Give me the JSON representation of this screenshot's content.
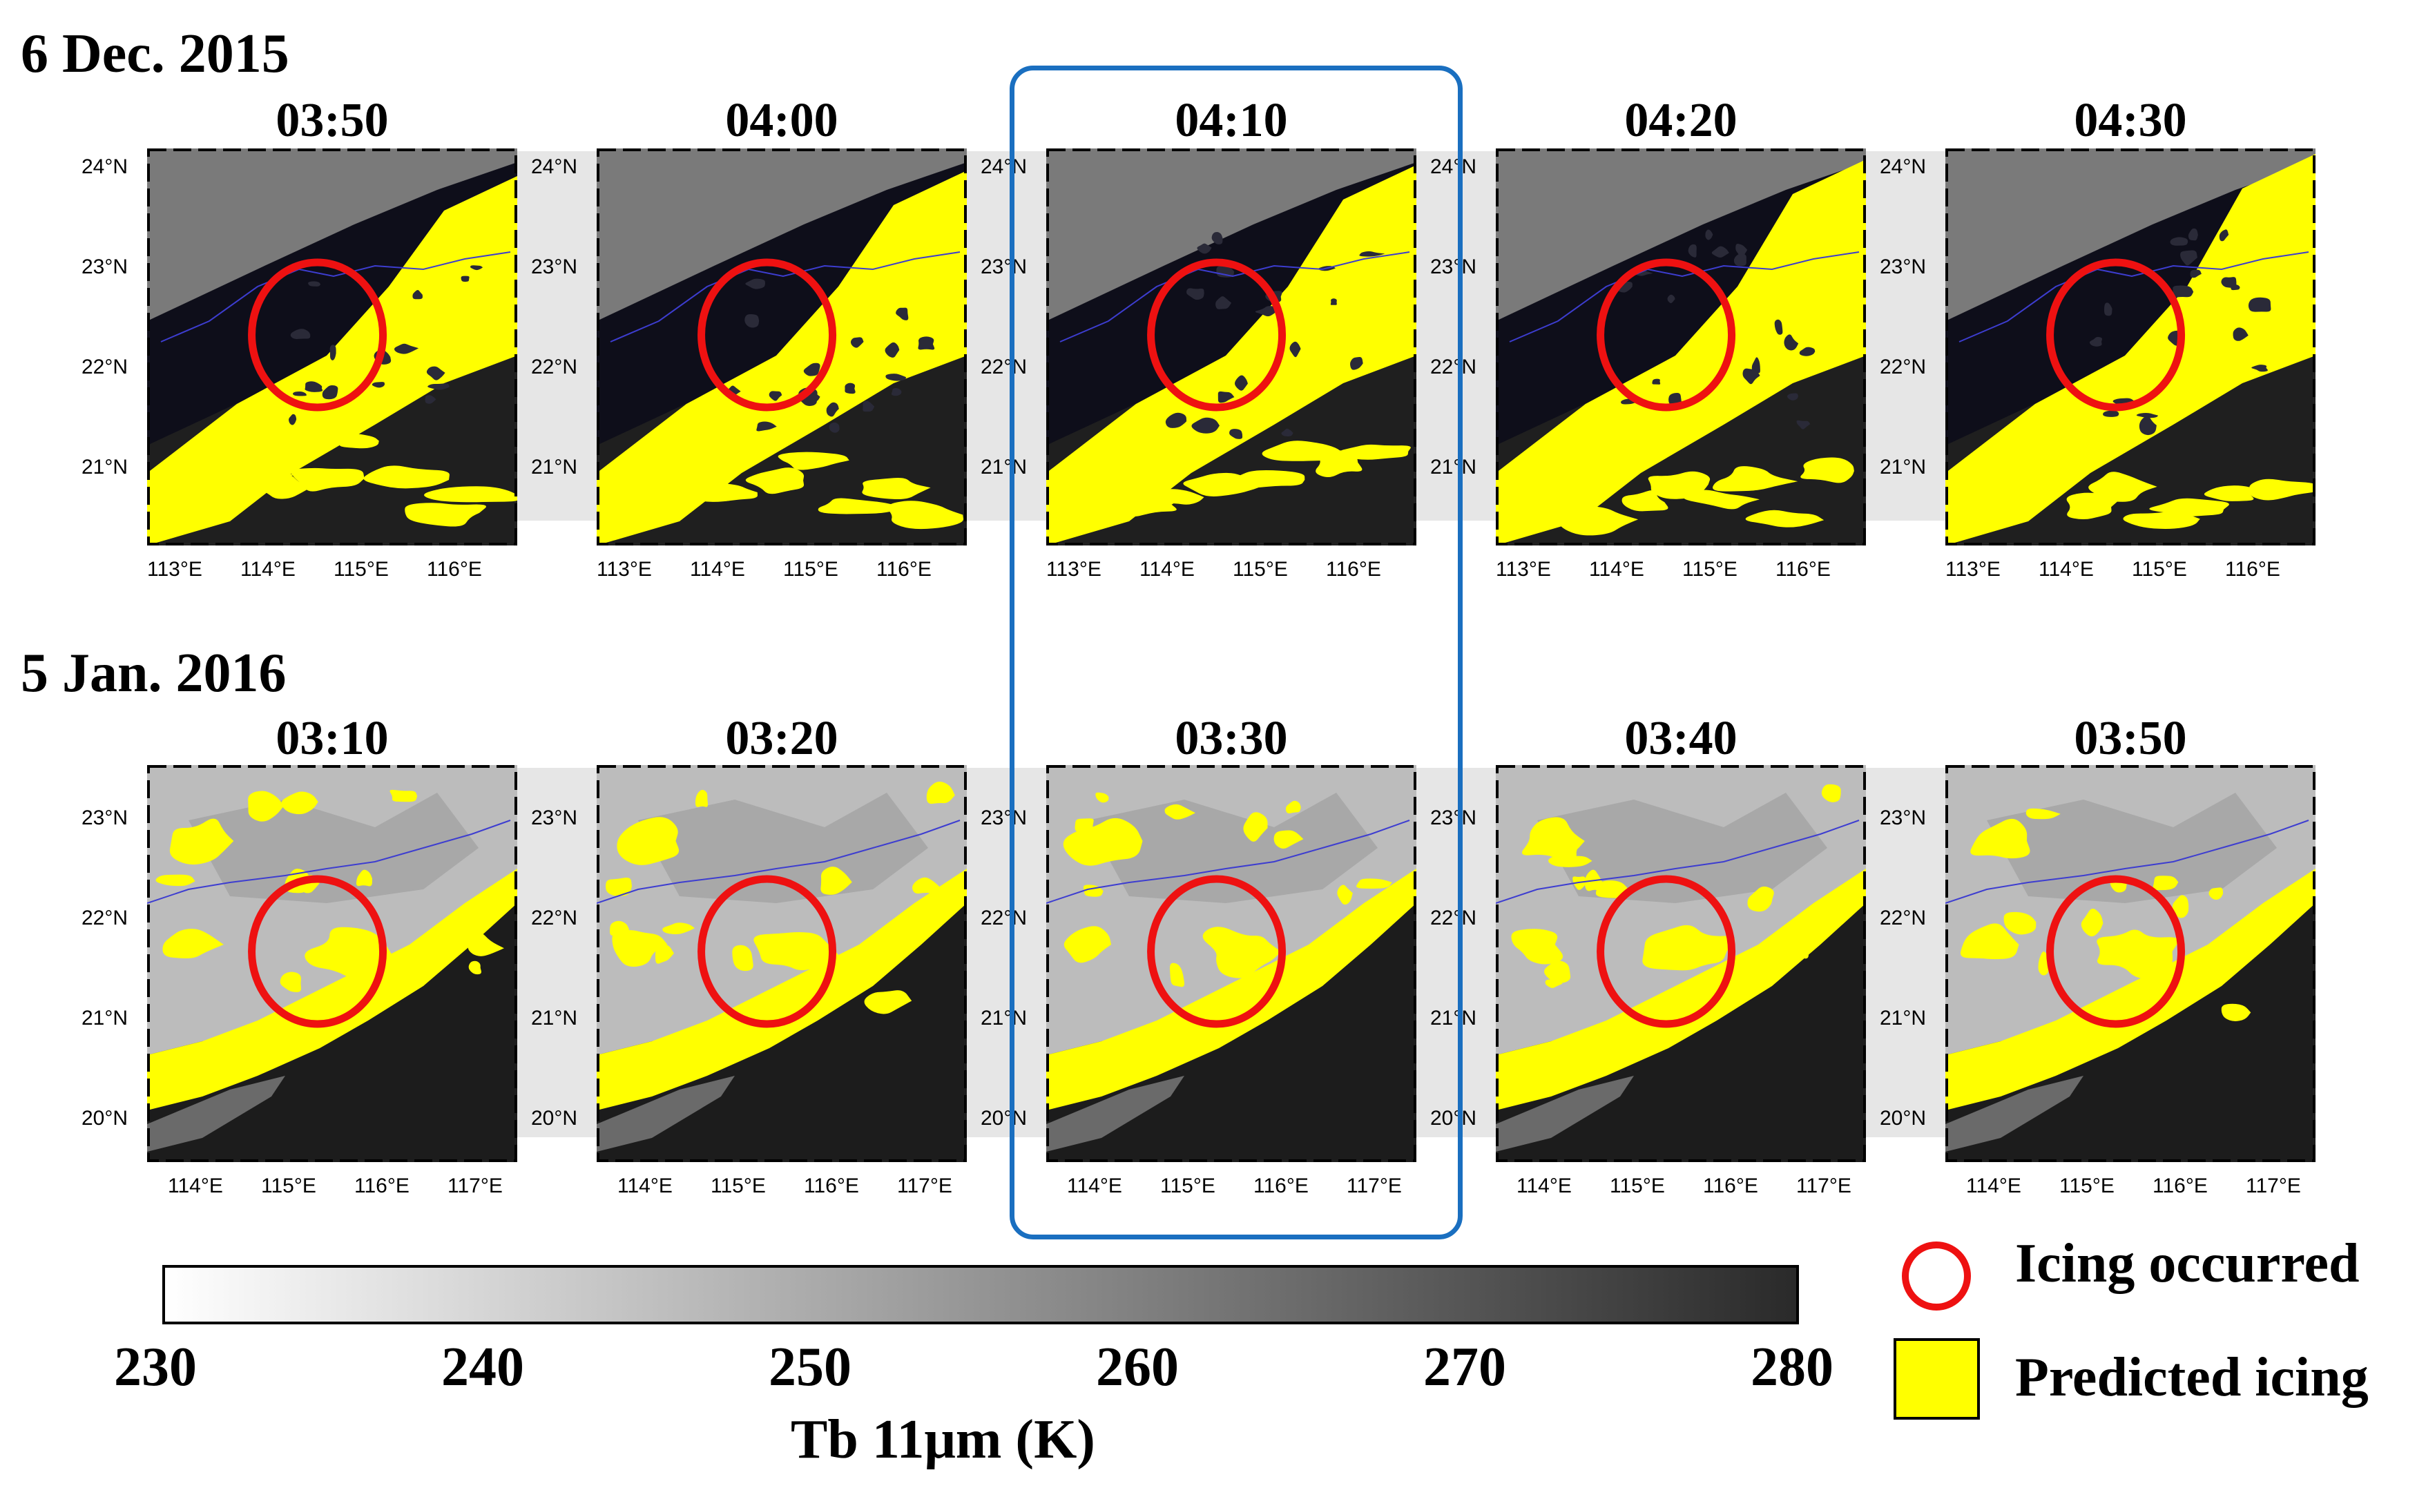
{
  "rows": [
    {
      "date": "6 Dec. 2015",
      "times": [
        "03:50",
        "04:00",
        "04:10",
        "04:20",
        "04:30"
      ],
      "lat_labels": [
        "24°N",
        "23°N",
        "22°N",
        "21°N"
      ],
      "lon_labels": [
        "113°E",
        "114°E",
        "115°E",
        "116°E"
      ]
    },
    {
      "date": "5 Jan. 2016",
      "times": [
        "03:10",
        "03:20",
        "03:30",
        "03:40",
        "03:50"
      ],
      "lat_labels": [
        "23°N",
        "22°N",
        "21°N",
        "20°N"
      ],
      "lon_labels": [
        "114°E",
        "115°E",
        "116°E",
        "117°E"
      ]
    }
  ],
  "highlighted_column": 2,
  "colorbar": {
    "ticks": [
      "230",
      "240",
      "250",
      "260",
      "270",
      "280"
    ],
    "title": "Tb 11μm  (K)",
    "colors": [
      "#ffffff",
      "#2a2a2a"
    ]
  },
  "legend": {
    "icing_occurred": "Icing occurred",
    "predicted_icing": "Predicted icing"
  },
  "colors": {
    "predicted": "#ffff00",
    "circle": "#ee1111",
    "highlight": "#1a6fc0",
    "coast": "#3d3dd0"
  }
}
